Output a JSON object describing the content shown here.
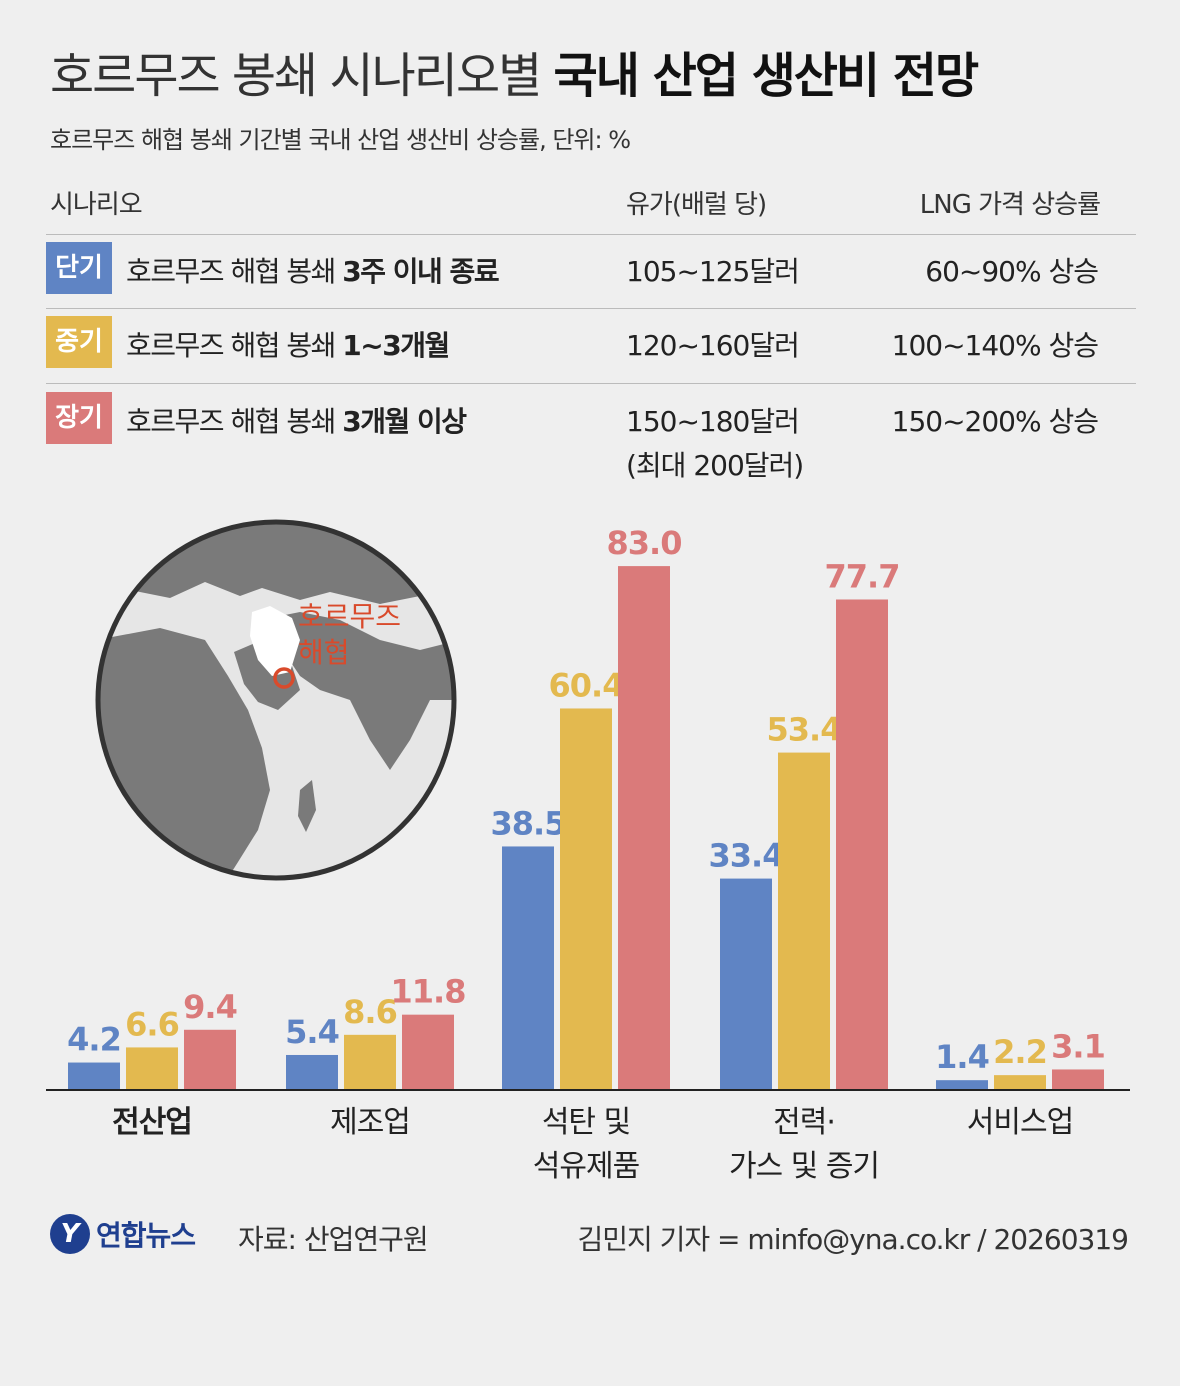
{
  "header": {
    "title_light": "호르무즈 봉쇄 시나리오별",
    "title_bold": "국내 산업 생산비 전망",
    "subtitle": "호르무즈 해협 봉쇄 기간별 국내 산업 생산비 상승률, 단위: %"
  },
  "table": {
    "col_scenario": "시나리오",
    "col_oil": "유가(배럴 당)",
    "col_lng": "LNG 가격 상승률",
    "rows": [
      {
        "badge": "단기",
        "color": "#5f84c4",
        "desc": "호르무즈 해협 봉쇄 ",
        "desc_bold": "3주 이내 종료",
        "oil": "105~125달러",
        "oil2": "",
        "lng": "60~90% 상승"
      },
      {
        "badge": "중기",
        "color": "#e3b94f",
        "desc": "호르무즈 해협 봉쇄 ",
        "desc_bold": "1~3개월",
        "oil": "120~160달러",
        "oil2": "",
        "lng": "100~140% 상승"
      },
      {
        "badge": "장기",
        "color": "#da7a7a",
        "desc": "호르무즈 해협 봉쇄 ",
        "desc_bold": "3개월 이상",
        "oil": "150~180달러",
        "oil2": "(최대 200달러)",
        "lng": "150~200% 상승"
      }
    ]
  },
  "map": {
    "label_line1": "호르무즈",
    "label_line2": "해협",
    "highlight_color": "#d94a2b"
  },
  "chart_data": {
    "type": "bar",
    "categories": [
      "전산업",
      "제조업",
      "석탄 및\n석유제품",
      "전력·\n가스 및 증기",
      "서비스업"
    ],
    "series": [
      {
        "name": "단기",
        "color": "#5f84c4",
        "values": [
          4.2,
          5.4,
          38.5,
          33.4,
          1.4
        ]
      },
      {
        "name": "중기",
        "color": "#e3b94f",
        "values": [
          6.6,
          8.6,
          60.4,
          53.4,
          2.2
        ]
      },
      {
        "name": "장기",
        "color": "#da7a7a",
        "values": [
          9.4,
          11.8,
          83.0,
          77.7,
          3.1
        ]
      }
    ],
    "ylim": [
      0,
      85
    ]
  },
  "footer": {
    "logo_mark": "Y",
    "logo_text": "연합뉴스",
    "source": "자료: 산업연구원",
    "credit": "김민지 기자 = minfo@yna.co.kr / 20260319"
  }
}
